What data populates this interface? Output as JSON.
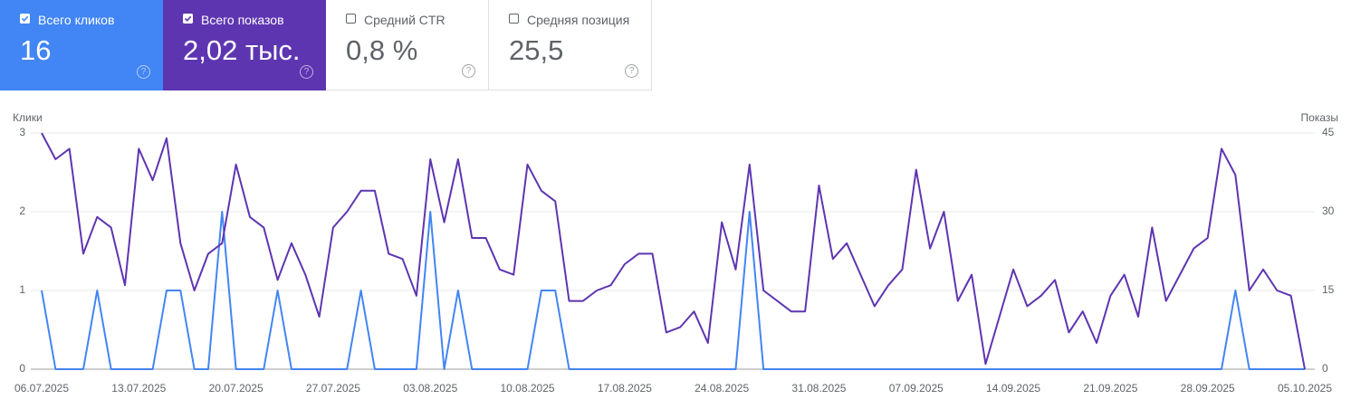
{
  "cards": [
    {
      "label": "Всего кликов",
      "value": "16",
      "selected": true,
      "color": "#4285f4"
    },
    {
      "label": "Всего показов",
      "value": "2,02 тыс.",
      "selected": true,
      "color": "#5e35b1"
    },
    {
      "label": "Средний CTR",
      "value": "0,8 %",
      "selected": false
    },
    {
      "label": "Средняя позиция",
      "value": "25,5",
      "selected": false
    }
  ],
  "chart_data": {
    "type": "line",
    "ylabel": "Клики",
    "y2label": "Показы",
    "x": [
      "06.07.2025",
      null,
      null,
      null,
      null,
      null,
      null,
      "13.07.2025",
      null,
      null,
      null,
      null,
      null,
      null,
      "20.07.2025",
      null,
      null,
      null,
      null,
      null,
      null,
      "27.07.2025",
      null,
      null,
      null,
      null,
      null,
      null,
      "03.08.2025",
      null,
      null,
      null,
      null,
      null,
      null,
      "10.08.2025",
      null,
      null,
      null,
      null,
      null,
      null,
      "17.08.2025",
      null,
      null,
      null,
      null,
      null,
      null,
      "24.08.2025",
      null,
      null,
      null,
      null,
      null,
      null,
      "31.08.2025",
      null,
      null,
      null,
      null,
      null,
      null,
      "07.09.2025",
      null,
      null,
      null,
      null,
      null,
      null,
      "14.09.2025",
      null,
      null,
      null,
      null,
      null,
      null,
      "21.09.2025",
      null,
      null,
      null,
      null,
      null,
      null,
      "28.09.2025",
      null,
      null,
      null,
      null,
      null,
      null,
      "05.10.2025"
    ],
    "series": [
      {
        "name": "Клики",
        "color": "#4285f4",
        "axis": "y",
        "values": [
          1,
          0,
          0,
          0,
          1,
          0,
          0,
          0,
          0,
          1,
          1,
          0,
          0,
          2,
          0,
          0,
          0,
          1,
          0,
          0,
          0,
          0,
          0,
          1,
          0,
          0,
          0,
          0,
          2,
          0,
          1,
          0,
          0,
          0,
          0,
          0,
          1,
          1,
          0,
          0,
          0,
          0,
          0,
          0,
          0,
          0,
          0,
          0,
          0,
          0,
          0,
          2,
          0,
          0,
          0,
          0,
          0,
          0,
          0,
          0,
          0,
          0,
          0,
          0,
          0,
          0,
          0,
          0,
          0,
          0,
          0,
          0,
          0,
          0,
          0,
          0,
          0,
          0,
          0,
          0,
          0,
          0,
          0,
          0,
          0,
          0,
          1,
          0,
          0,
          0,
          0,
          0
        ]
      },
      {
        "name": "Показы",
        "color": "#5e35b1",
        "axis": "y2",
        "values": [
          45,
          40,
          42,
          22,
          29,
          27,
          16,
          42,
          36,
          44,
          24,
          15,
          22,
          24,
          39,
          29,
          27,
          17,
          24,
          18,
          10,
          27,
          30,
          34,
          34,
          22,
          21,
          14,
          40,
          28,
          40,
          25,
          25,
          19,
          18,
          39,
          34,
          32,
          13,
          13,
          15,
          16,
          20,
          22,
          22,
          7,
          8,
          11,
          5,
          28,
          19,
          39,
          15,
          13,
          11,
          11,
          35,
          21,
          24,
          18,
          12,
          16,
          19,
          38,
          23,
          30,
          13,
          18,
          1,
          10,
          19,
          12,
          14,
          17,
          7,
          11,
          5,
          14,
          18,
          10,
          27,
          13,
          18,
          23,
          25,
          42,
          37,
          15,
          19,
          15,
          14,
          0
        ]
      }
    ],
    "ylim": [
      0,
      3
    ],
    "yticks": [
      0,
      1,
      2,
      3
    ],
    "y2lim": [
      0,
      45
    ],
    "y2ticks": [
      0,
      15,
      30,
      45
    ],
    "grid": true
  }
}
